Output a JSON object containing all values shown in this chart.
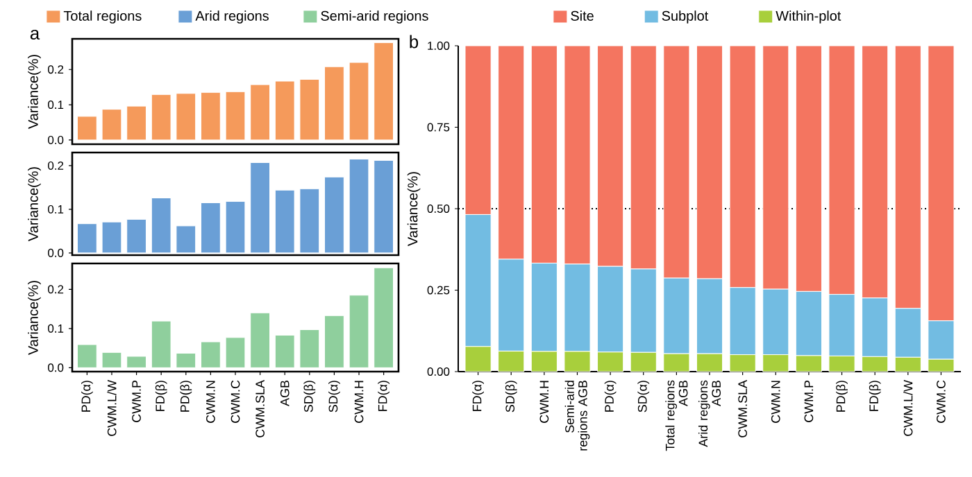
{
  "chart_data": [
    {
      "type": "bar",
      "annotations": [
        "a"
      ],
      "ylabel": "Variance(%)",
      "legend": "top",
      "tick_labels": "y",
      "categories": [
        null,
        null,
        null,
        null,
        null,
        null,
        null,
        null,
        null,
        null,
        null,
        null,
        null
      ],
      "series": [
        {
          "name": "Total regions",
          "color": "#f59a5b",
          "values": [
            0.067,
            0.087,
            0.096,
            0.129,
            0.132,
            0.135,
            0.137,
            0.157,
            0.167,
            0.172,
            0.208,
            0.22,
            0.276
          ]
        }
      ],
      "ylim": [
        -0.012,
        0.287
      ],
      "yticks": [
        {
          "value": 0,
          "label": "0.0"
        },
        {
          "value": 0.1,
          "label": "0.1"
        },
        {
          "value": 0.2,
          "label": "0.2"
        }
      ]
    },
    {
      "type": "bar",
      "ylabel": "Variance(%)",
      "legend": "top",
      "tick_labels": "y",
      "categories": [
        null,
        null,
        null,
        null,
        null,
        null,
        null,
        null,
        null,
        null,
        null,
        null,
        null
      ],
      "series": [
        {
          "name": "Arid regions",
          "color": "#6a9fd6",
          "values": [
            0.067,
            0.071,
            0.077,
            0.126,
            0.062,
            0.115,
            0.118,
            0.207,
            0.144,
            0.147,
            0.174,
            0.215,
            0.212
          ]
        }
      ],
      "ylim": [
        -0.005,
        0.23
      ],
      "yticks": [
        {
          "value": 0,
          "label": "0.0"
        },
        {
          "value": 0.1,
          "label": "0.1"
        },
        {
          "value": 0.2,
          "label": "0.2"
        }
      ]
    },
    {
      "type": "bar",
      "ylabel": "Variance(%)",
      "legend": "top",
      "categories": [
        "PD(α)",
        "CWM.L/W",
        "CWM.P",
        "FD(β)",
        "PD(β)",
        "CWM.N",
        "CWM.C",
        "CWM.SLA",
        "AGB",
        "SD(β)",
        "SD(α)",
        "CWM.H",
        "FD(α)"
      ],
      "series": [
        {
          "name": "Semi-arid regions",
          "color": "#8fcf9d",
          "values": [
            0.059,
            0.039,
            0.029,
            0.119,
            0.037,
            0.066,
            0.077,
            0.14,
            0.083,
            0.097,
            0.133,
            0.185,
            0.255
          ]
        }
      ],
      "ylim": [
        -0.01,
        0.266
      ],
      "yticks": [
        {
          "value": 0,
          "label": "0.0"
        },
        {
          "value": 0.1,
          "label": "0.1"
        },
        {
          "value": 0.2,
          "label": "0.2"
        }
      ]
    },
    {
      "type": "bar",
      "stacked": true,
      "annotations": [
        "b"
      ],
      "ylabel": "Variance(%)",
      "legend": "top",
      "categories": [
        "FD(α)",
        "SD(β)",
        "CWM.H",
        "Semi-arid regions AGB",
        "PD(α)",
        "SD(α)",
        "Total regions AGB",
        "Arid regions AGB",
        "CWM.SLA",
        "CWM.N",
        "CWM.P",
        "PD(β)",
        "FD(β)",
        "CWM.L/W",
        "CWM.C"
      ],
      "series": [
        {
          "name": "Within-plot",
          "color": "#a8cf3c",
          "values": [
            0.077,
            0.063,
            0.062,
            0.062,
            0.06,
            0.059,
            0.055,
            0.055,
            0.052,
            0.052,
            0.049,
            0.048,
            0.046,
            0.044,
            0.038
          ]
        },
        {
          "name": "Subplot",
          "color": "#72bce2",
          "values": [
            0.405,
            0.282,
            0.271,
            0.268,
            0.263,
            0.256,
            0.232,
            0.23,
            0.206,
            0.201,
            0.197,
            0.189,
            0.18,
            0.15,
            0.118
          ]
        },
        {
          "name": "Site",
          "color": "#f47560",
          "values": [
            0.518,
            0.655,
            0.667,
            0.67,
            0.677,
            0.685,
            0.713,
            0.715,
            0.742,
            0.747,
            0.754,
            0.763,
            0.774,
            0.806,
            0.844
          ]
        }
      ],
      "ref_lines": [
        {
          "axis": "y",
          "value": 0.5,
          "line_style": "dotted"
        }
      ],
      "ylim": [
        0,
        1
      ],
      "yticks": [
        {
          "value": 0,
          "label": "0.00"
        },
        {
          "value": 0.25,
          "label": "0.25"
        },
        {
          "value": 0.5,
          "label": "0.50"
        },
        {
          "value": 0.75,
          "label": "0.75"
        },
        {
          "value": 1,
          "label": "1.00"
        }
      ]
    }
  ]
}
